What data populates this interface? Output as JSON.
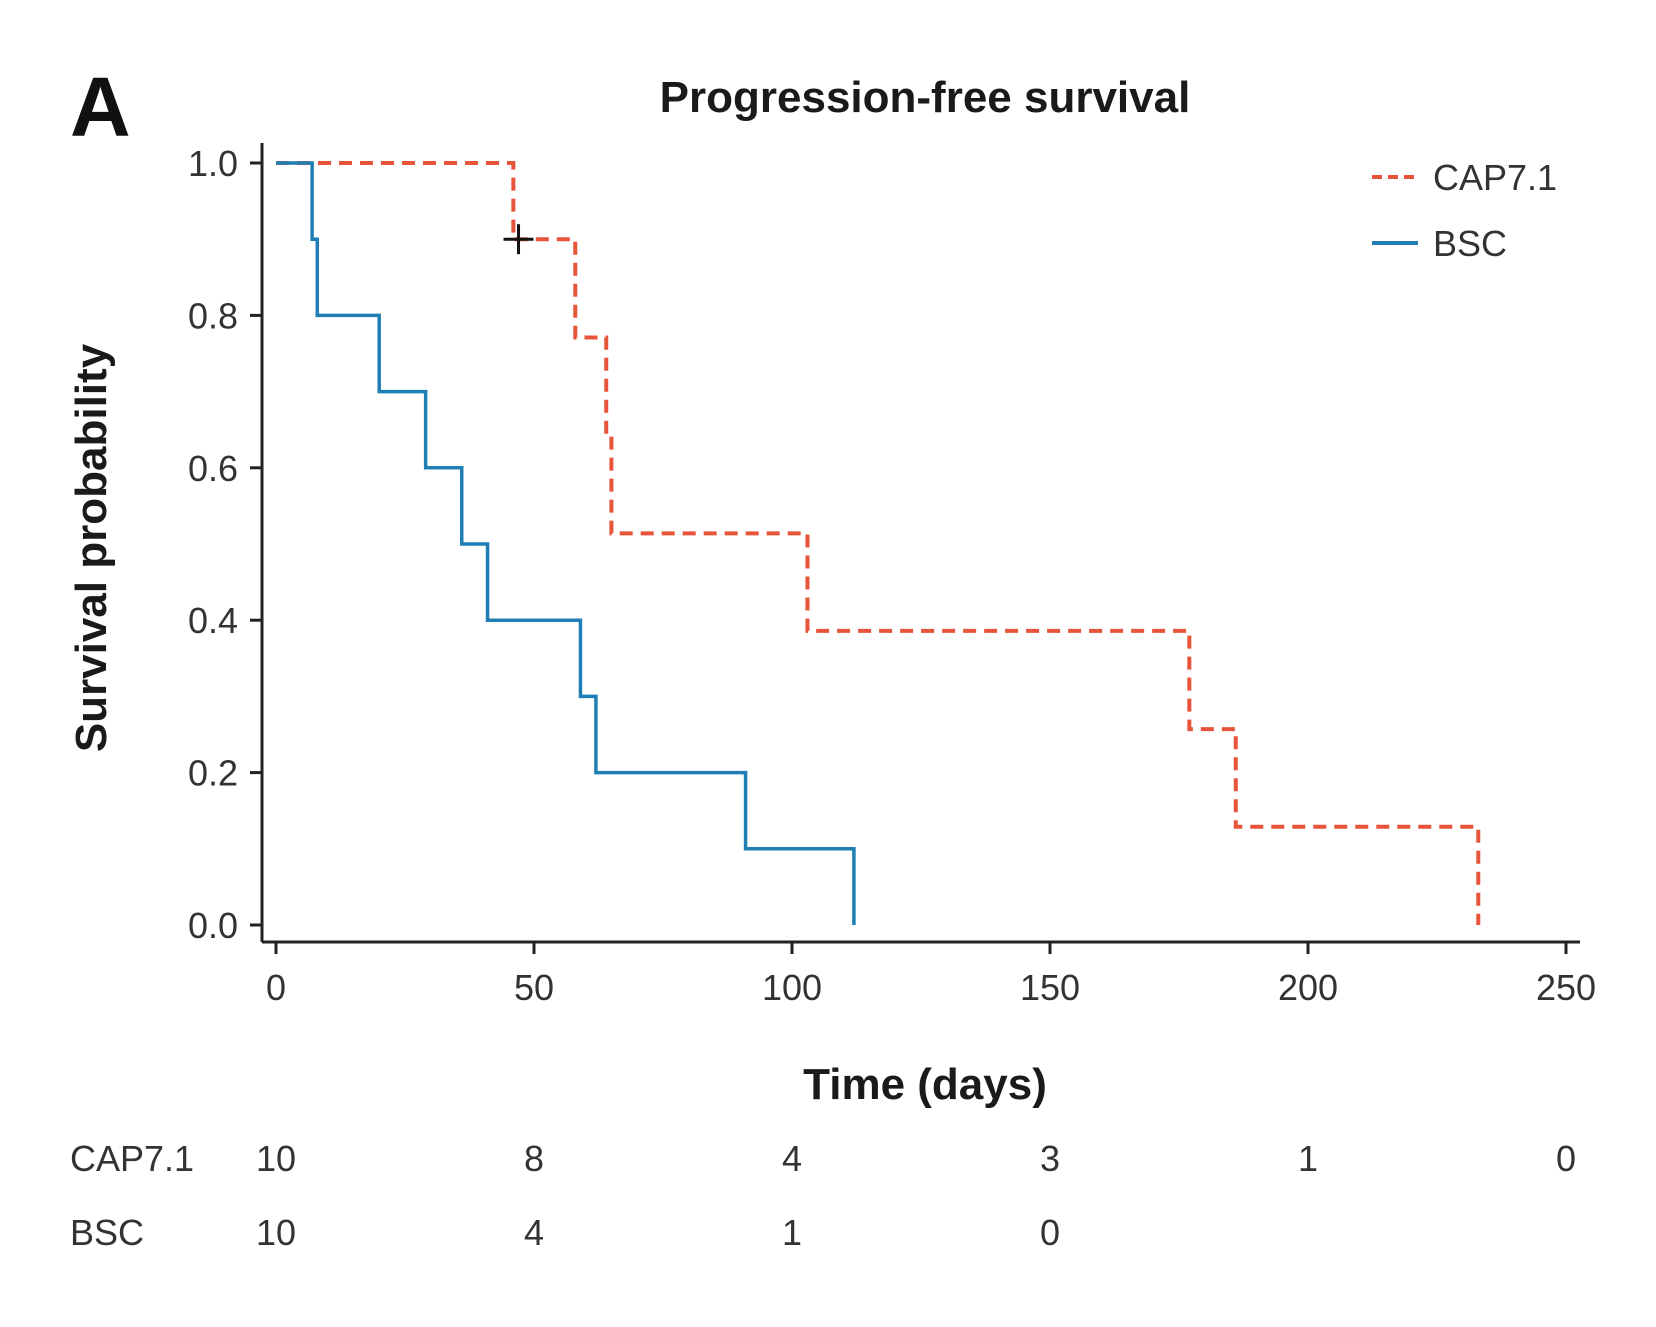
{
  "panel_label": "A",
  "chart_data": {
    "type": "line",
    "subtype": "kaplan-meier step",
    "title": "Progression-free survival",
    "xlabel": "Time (days)",
    "ylabel": "Survival probability",
    "xlim": [
      0,
      250
    ],
    "ylim": [
      0,
      1.0
    ],
    "xticks": [
      0,
      50,
      100,
      150,
      200,
      250
    ],
    "yticks": [
      0.0,
      0.2,
      0.4,
      0.6,
      0.8,
      1.0
    ],
    "xtick_labels": [
      "0",
      "50",
      "100",
      "150",
      "200",
      "250"
    ],
    "ytick_labels": [
      "0.0",
      "0.2",
      "0.4",
      "0.6",
      "0.8",
      "1.0"
    ],
    "grid": false,
    "legend_position": "top-right",
    "series": [
      {
        "name": "CAP7.1",
        "color": "#e8543a",
        "line_style": "dashed",
        "steps": [
          {
            "x": 0,
            "y": 1.0
          },
          {
            "x": 46,
            "y": 0.9
          },
          {
            "x": 58,
            "y": 0.771
          },
          {
            "x": 64,
            "y": 0.643
          },
          {
            "x": 65,
            "y": 0.514
          },
          {
            "x": 103,
            "y": 0.386
          },
          {
            "x": 177,
            "y": 0.257
          },
          {
            "x": 186,
            "y": 0.129
          },
          {
            "x": 233,
            "y": 0.0
          }
        ],
        "censored": [
          {
            "x": 47,
            "y": 0.9
          }
        ]
      },
      {
        "name": "BSC",
        "color": "#1f7fb4",
        "line_style": "solid",
        "steps": [
          {
            "x": 0,
            "y": 1.0
          },
          {
            "x": 7,
            "y": 0.9
          },
          {
            "x": 8,
            "y": 0.8
          },
          {
            "x": 20,
            "y": 0.7
          },
          {
            "x": 29,
            "y": 0.6
          },
          {
            "x": 36,
            "y": 0.5
          },
          {
            "x": 41,
            "y": 0.4
          },
          {
            "x": 59,
            "y": 0.3
          },
          {
            "x": 62,
            "y": 0.2
          },
          {
            "x": 91,
            "y": 0.1
          },
          {
            "x": 112,
            "y": 0.0
          }
        ],
        "censored": []
      }
    ],
    "risk_table": {
      "times": [
        0,
        50,
        100,
        150,
        200,
        250
      ],
      "rows": [
        {
          "name": "CAP7.1",
          "values": [
            "10",
            "8",
            "4",
            "3",
            "1",
            "0"
          ]
        },
        {
          "name": "BSC",
          "values": [
            "10",
            "4",
            "1",
            "0"
          ]
        }
      ]
    }
  }
}
